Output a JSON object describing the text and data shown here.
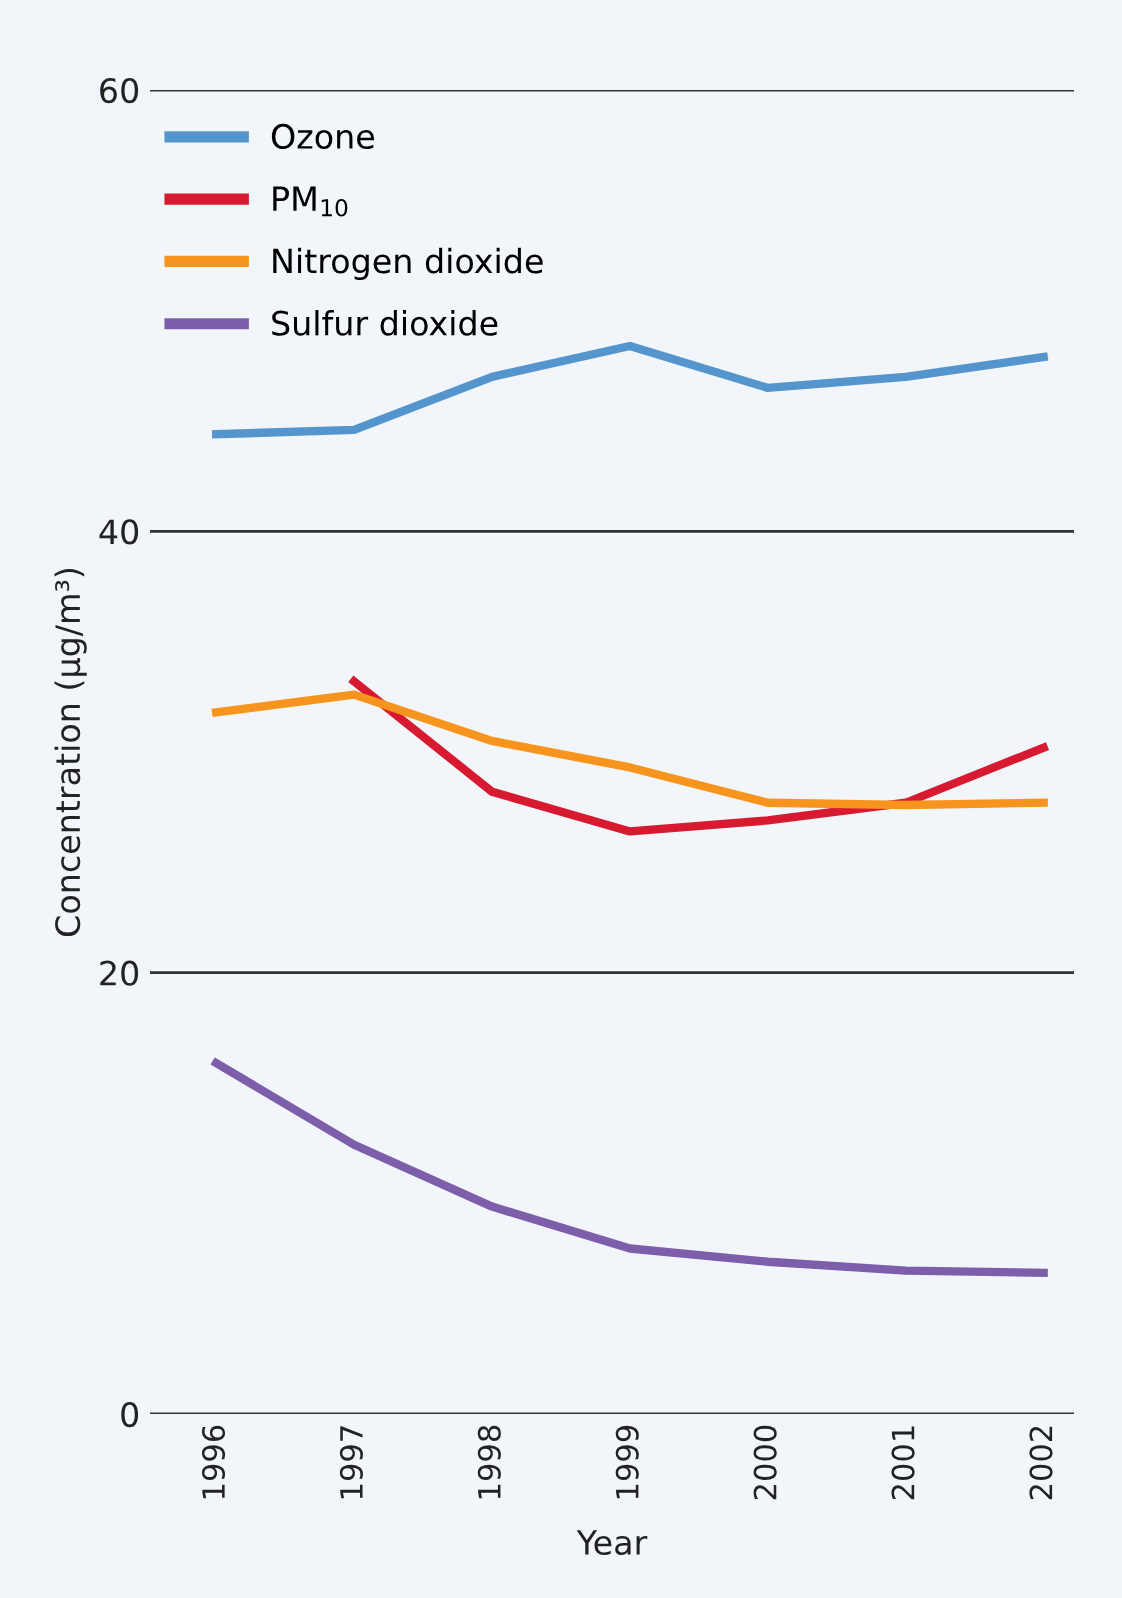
{
  "chart_data": {
    "type": "line",
    "xlabel": "Year",
    "ylabel": "Concentration (µg/m³)",
    "categories": [
      "1996",
      "1997",
      "1998",
      "1999",
      "2000",
      "2001",
      "2002"
    ],
    "series": [
      {
        "name": "Ozone",
        "color": "#5495cd",
        "values": [
          44.4,
          44.6,
          47.0,
          48.4,
          46.5,
          47.0,
          47.9
        ]
      },
      {
        "name": "PM$_{10}$",
        "color": "#d71a30",
        "values": [
          null,
          33.2,
          28.2,
          26.4,
          26.9,
          27.7,
          30.2
        ]
      },
      {
        "name": "Nitrogen dioxide",
        "color": "#f7941d",
        "values": [
          31.8,
          32.6,
          30.5,
          29.3,
          27.7,
          27.6,
          27.7
        ]
      },
      {
        "name": "Sulfur dioxide",
        "color": "#7d5eab",
        "values": [
          15.9,
          12.2,
          9.4,
          7.5,
          6.9,
          6.5,
          6.4
        ]
      }
    ],
    "ylim": [
      0,
      60
    ],
    "yticks": [
      0,
      20,
      40,
      60
    ],
    "grid": "y",
    "legend": "top left",
    "marker": "none",
    "line_style": "solid"
  }
}
